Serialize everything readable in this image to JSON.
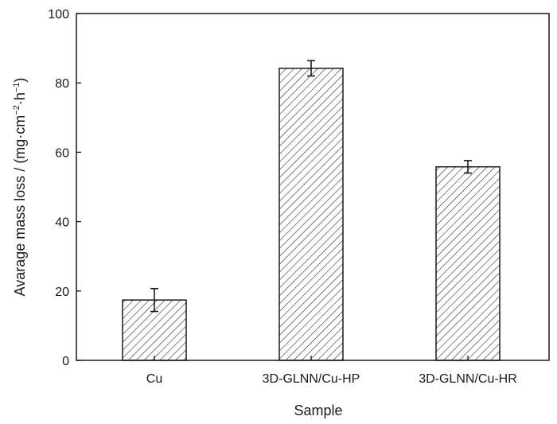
{
  "chart_data": {
    "type": "bar",
    "title": "",
    "xlabel": "Sample",
    "ylabel": "Avarage mass loss / (mg·cm",
    "ylabel_sup1": "−2",
    "ylabel_mid": "·h",
    "ylabel_sup2": "−1",
    "ylabel_end": ")",
    "categories": [
      "Cu",
      "3D-GLNN/Cu-HP",
      "3D-GLNN/Cu-HR"
    ],
    "values": [
      17.4,
      84.2,
      55.8
    ],
    "errors": [
      3.3,
      2.2,
      1.8
    ],
    "ylim": [
      0,
      100
    ],
    "yticks": [
      0,
      20,
      40,
      60,
      80,
      100
    ],
    "bar_style": "diagonal-hatch",
    "bar_color": "#ffffff",
    "edge_color": "#1a1a1a"
  }
}
